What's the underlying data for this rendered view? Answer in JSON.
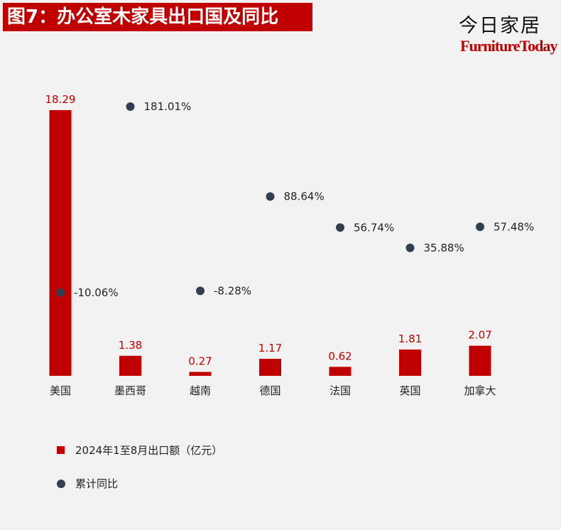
{
  "header": {
    "title": "图7：办公室木家具出口国及同比",
    "brand_cn": "今日家居",
    "brand_en": "FurnitureToday"
  },
  "legend": {
    "bar_label": "2024年1至8月出口额（亿元）",
    "dot_label": "累计同比"
  },
  "colors": {
    "bar": "#c00000",
    "dot": "#333f50",
    "bar_label": "#c00000",
    "dot_label": "#222222"
  },
  "chart_data": {
    "type": "bar",
    "categories": [
      "美国",
      "墨西哥",
      "越南",
      "德国",
      "法国",
      "英国",
      "加拿大"
    ],
    "series": [
      {
        "name": "2024年1至8月出口额（亿元）",
        "type": "bar",
        "values": [
          18.29,
          1.38,
          0.27,
          1.17,
          0.62,
          1.81,
          2.07
        ],
        "labels": [
          "18.29",
          "1.38",
          "0.27",
          "1.17",
          "0.62",
          "1.81",
          "2.07"
        ]
      },
      {
        "name": "累计同比",
        "type": "scatter",
        "values": [
          -10.06,
          181.01,
          -8.28,
          88.64,
          56.74,
          35.88,
          57.48
        ],
        "labels": [
          "-10.06%",
          "181.01%",
          "-8.28%",
          "88.64%",
          "56.74%",
          "35.88%",
          "57.48%"
        ]
      }
    ],
    "bar_ylim": [
      0,
      18.29
    ],
    "pct_ylim": [
      -35,
      181.01
    ],
    "grid": false,
    "legend_position": "bottom-left"
  }
}
